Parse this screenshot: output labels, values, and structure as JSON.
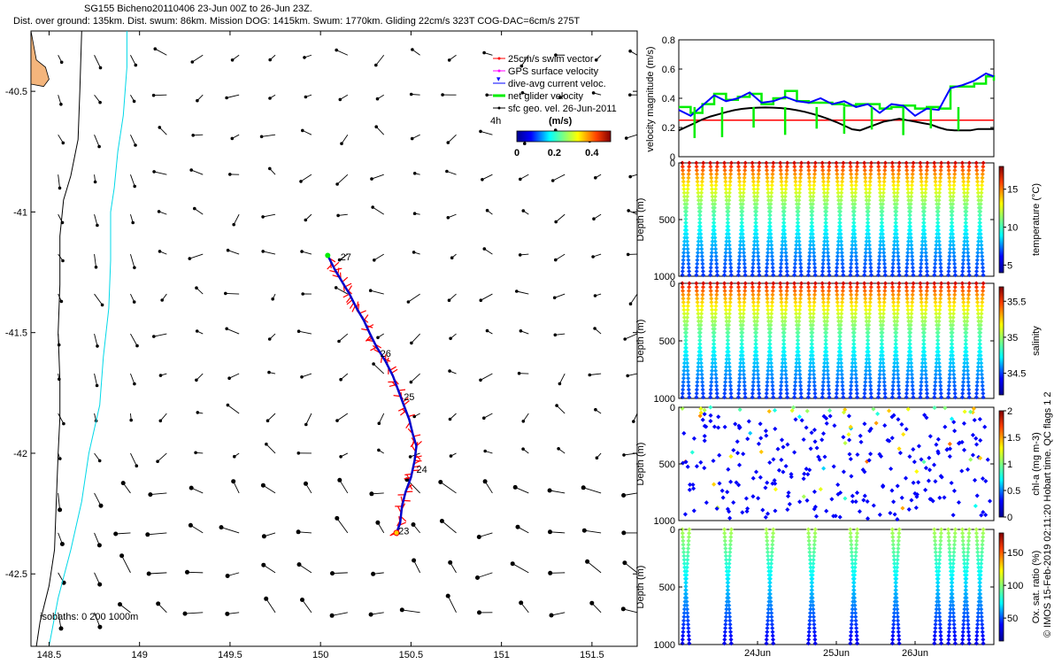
{
  "header": {
    "line1": "SG155 Bicheno20110406 23-Jun 00Z to 26-Jun 23Z.",
    "line2": "Dist. over ground: 135km. Dist. swum: 86km. Mission DOG: 1415km. Swum: 1770km. Gliding 22cm/s 323T COG-DAC=6cm/s 275T"
  },
  "colors": {
    "coast": "#f4b57c",
    "isobath200": "#000000",
    "isobath1000": "#00d8e8",
    "glider_track": "#0000cc",
    "swim_vector": "#ff0000",
    "gps_velocity": "#ff00ff",
    "dac": "#0000ff",
    "net_velocity": "#00ee00",
    "reference_line": "#ff0000",
    "geo_velocity": "#000000"
  },
  "chart_data": [
    {
      "id": "map",
      "type": "scatter",
      "xlim": [
        148.4,
        151.75
      ],
      "ylim": [
        -42.8,
        -40.25
      ],
      "xticks": [
        148.5,
        149,
        149.5,
        150,
        150.5,
        151,
        151.5
      ],
      "xtick_labels": [
        "148.5",
        "149",
        "149.5",
        "150",
        "150.5",
        "151",
        "151.5"
      ],
      "yticks": [
        -40.5,
        -41,
        -41.5,
        -42,
        -42.5
      ],
      "ytick_labels": [
        "-40.5",
        "-41",
        "-41.5",
        "-42",
        "-42.5"
      ],
      "legend": {
        "position": "top-right",
        "entries": [
          "25cm/s swim vector",
          "GPS surface velocity",
          "dive-avg current veloc.",
          "net glider velocity",
          "sfc geo. vel. 26-Jun-2011"
        ]
      },
      "colorbar": {
        "title": "(m/s)",
        "side_label": "4h",
        "tick_labels": [
          "0",
          "0.2",
          "0.4"
        ],
        "range": [
          0,
          0.5
        ]
      },
      "isobaths_label": "isobaths: 0   200   1000m",
      "track_labels": [
        {
          "text": "23",
          "lon": 150.43,
          "lat": -42.335
        },
        {
          "text": "24",
          "lon": 150.53,
          "lat": -42.08
        },
        {
          "text": "25",
          "lon": 150.46,
          "lat": -41.78
        },
        {
          "text": "26",
          "lon": 150.33,
          "lat": -41.6
        },
        {
          "text": "27",
          "lon": 150.11,
          "lat": -41.2
        }
      ],
      "track": [
        [
          150.42,
          -42.33
        ],
        [
          150.44,
          -42.29
        ],
        [
          150.45,
          -42.22
        ],
        [
          150.47,
          -42.16
        ],
        [
          150.5,
          -42.1
        ],
        [
          150.52,
          -42.03
        ],
        [
          150.53,
          -41.97
        ],
        [
          150.51,
          -41.92
        ],
        [
          150.49,
          -41.86
        ],
        [
          150.46,
          -41.8
        ],
        [
          150.43,
          -41.74
        ],
        [
          150.4,
          -41.68
        ],
        [
          150.36,
          -41.62
        ],
        [
          150.31,
          -41.56
        ],
        [
          150.27,
          -41.5
        ],
        [
          150.24,
          -41.45
        ],
        [
          150.2,
          -41.4
        ],
        [
          150.16,
          -41.34
        ],
        [
          150.12,
          -41.29
        ],
        [
          150.08,
          -41.24
        ],
        [
          150.04,
          -41.18
        ]
      ],
      "isobath_200": [
        [
          148.68,
          -40.25
        ],
        [
          148.67,
          -40.5
        ],
        [
          148.66,
          -40.7
        ],
        [
          148.62,
          -40.85
        ],
        [
          148.58,
          -40.95
        ],
        [
          148.56,
          -41.1
        ],
        [
          148.56,
          -41.3
        ],
        [
          148.55,
          -41.5
        ],
        [
          148.56,
          -41.7
        ],
        [
          148.56,
          -41.85
        ],
        [
          148.55,
          -42.0
        ],
        [
          148.54,
          -42.2
        ],
        [
          148.53,
          -42.4
        ],
        [
          148.5,
          -42.55
        ],
        [
          148.45,
          -42.7
        ],
        [
          148.43,
          -42.8
        ]
      ],
      "isobath_1000": [
        [
          148.93,
          -40.25
        ],
        [
          148.93,
          -40.4
        ],
        [
          148.91,
          -40.6
        ],
        [
          148.88,
          -40.75
        ],
        [
          148.86,
          -40.9
        ],
        [
          148.84,
          -41.0
        ],
        [
          148.84,
          -41.2
        ],
        [
          148.83,
          -41.4
        ],
        [
          148.8,
          -41.6
        ],
        [
          148.78,
          -41.8
        ],
        [
          148.72,
          -42.0
        ],
        [
          148.68,
          -42.2
        ],
        [
          148.62,
          -42.4
        ],
        [
          148.55,
          -42.6
        ],
        [
          148.5,
          -42.8
        ]
      ],
      "coast_outline": [
        [
          148.4,
          -40.25
        ],
        [
          148.43,
          -40.37
        ],
        [
          148.48,
          -40.4
        ],
        [
          148.5,
          -40.45
        ],
        [
          148.47,
          -40.48
        ],
        [
          148.4,
          -40.47
        ]
      ]
    },
    {
      "id": "velocity",
      "type": "line",
      "ylabel": "velocity magnitude (m/s)",
      "xlim": [
        0,
        4
      ],
      "ylim": [
        0,
        0.8
      ],
      "yticks": [
        0,
        0.2,
        0.4,
        0.6,
        0.8
      ],
      "ytick_labels": [
        "0",
        "0.2",
        "0.4",
        "0.6",
        "0.8"
      ],
      "reference_value": 0.25,
      "series": [
        {
          "values_x": [
            0.0,
            0.1,
            0.2,
            0.3,
            0.4,
            0.5,
            0.6,
            0.7,
            0.8,
            0.9,
            1.0,
            1.1,
            1.2,
            1.3,
            1.4,
            1.5,
            1.6,
            1.7,
            1.8,
            1.9,
            2.0,
            2.1,
            2.2,
            2.3,
            2.4,
            2.5,
            2.6,
            2.7,
            2.8,
            2.9,
            3.0,
            3.1,
            3.2,
            3.3,
            3.4,
            3.5,
            3.6,
            3.7,
            3.8,
            3.9,
            4.0
          ],
          "values_y": [
            0.18,
            0.205,
            0.23,
            0.255,
            0.275,
            0.29,
            0.305,
            0.318,
            0.327,
            0.333,
            0.336,
            0.337,
            0.336,
            0.333,
            0.327,
            0.318,
            0.307,
            0.293,
            0.277,
            0.258,
            0.237,
            0.213,
            0.188,
            0.18,
            0.2,
            0.22,
            0.24,
            0.25,
            0.26,
            0.25,
            0.24,
            0.23,
            0.22,
            0.2,
            0.185,
            0.18,
            0.18,
            0.18,
            0.19,
            0.19,
            0.19
          ]
        },
        {
          "values_x": [
            0.0,
            0.15,
            0.3,
            0.45,
            0.6,
            0.75,
            0.9,
            1.05,
            1.2,
            1.35,
            1.5,
            1.65,
            1.8,
            1.95,
            2.1,
            2.25,
            2.4,
            2.55,
            2.7,
            2.85,
            3.0,
            3.15,
            3.3,
            3.45,
            3.6,
            3.75,
            3.9,
            4.0
          ],
          "values_y": [
            0.34,
            0.3,
            0.36,
            0.43,
            0.39,
            0.41,
            0.43,
            0.36,
            0.4,
            0.45,
            0.38,
            0.37,
            0.37,
            0.36,
            0.35,
            0.36,
            0.36,
            0.33,
            0.34,
            0.35,
            0.33,
            0.34,
            0.33,
            0.48,
            0.48,
            0.5,
            0.55,
            0.52
          ]
        },
        {
          "values_x": [
            0.0,
            0.15,
            0.3,
            0.45,
            0.6,
            0.75,
            0.9,
            1.05,
            1.2,
            1.35,
            1.5,
            1.65,
            1.8,
            1.95,
            2.1,
            2.25,
            2.4,
            2.55,
            2.7,
            2.85,
            3.0,
            3.15,
            3.3,
            3.45,
            3.6,
            3.75,
            3.9,
            4.0
          ],
          "values_y": [
            0.32,
            0.28,
            0.35,
            0.42,
            0.38,
            0.4,
            0.44,
            0.37,
            0.38,
            0.41,
            0.38,
            0.37,
            0.4,
            0.36,
            0.38,
            0.34,
            0.36,
            0.3,
            0.36,
            0.35,
            0.28,
            0.33,
            0.32,
            0.47,
            0.49,
            0.52,
            0.57,
            0.55
          ]
        }
      ]
    },
    {
      "id": "temperature",
      "type": "scatter",
      "ylabel": "Depth (m)",
      "ylim": [
        1000,
        0
      ],
      "ytick_labels": [
        "0",
        "500",
        "1000"
      ],
      "colorbar_label": "temperature (°C)",
      "colorbar_range": [
        4,
        18
      ],
      "colorbar_ticks": [
        5,
        10,
        15
      ],
      "colorbar_tick_labels": [
        "5",
        "10",
        "15"
      ]
    },
    {
      "id": "salinity",
      "type": "scatter",
      "ylabel": "Depth (m)",
      "ylim": [
        1000,
        0
      ],
      "ytick_labels": [
        "0",
        "500",
        "1000"
      ],
      "colorbar_label": "salinity",
      "colorbar_range": [
        34.2,
        35.7
      ],
      "colorbar_ticks": [
        34.5,
        35,
        35.5
      ],
      "colorbar_tick_labels": [
        "34.5",
        "35",
        "35.5"
      ]
    },
    {
      "id": "chla",
      "type": "scatter",
      "ylabel": "Depth (m)",
      "ylim": [
        1000,
        0
      ],
      "ytick_labels": [
        "0",
        "500",
        "1000"
      ],
      "colorbar_label": "chl-a (mg m-3)",
      "colorbar_range": [
        0,
        2
      ],
      "colorbar_ticks": [
        0,
        0.5,
        1,
        1.5,
        2
      ],
      "colorbar_tick_labels": [
        "0",
        "0.5",
        "1",
        "1.5",
        "2"
      ]
    },
    {
      "id": "oxygen",
      "type": "scatter",
      "ylabel": "Depth (m)",
      "ylim": [
        1000,
        0
      ],
      "ytick_labels": [
        "0",
        "500",
        "1000"
      ],
      "colorbar_label": "Ox. sat. ratio (%)",
      "colorbar_range": [
        15,
        180
      ],
      "colorbar_ticks": [
        50,
        100,
        150
      ],
      "colorbar_tick_labels": [
        "50",
        "100",
        "150"
      ],
      "xticks": [
        1,
        2,
        3
      ],
      "xtick_labels": [
        "24Jun",
        "25Jun",
        "26Jun"
      ]
    }
  ],
  "side_note": "© IMOS 15-Feb-2019 02:11:20 Hobart time. QC flags 1  2"
}
